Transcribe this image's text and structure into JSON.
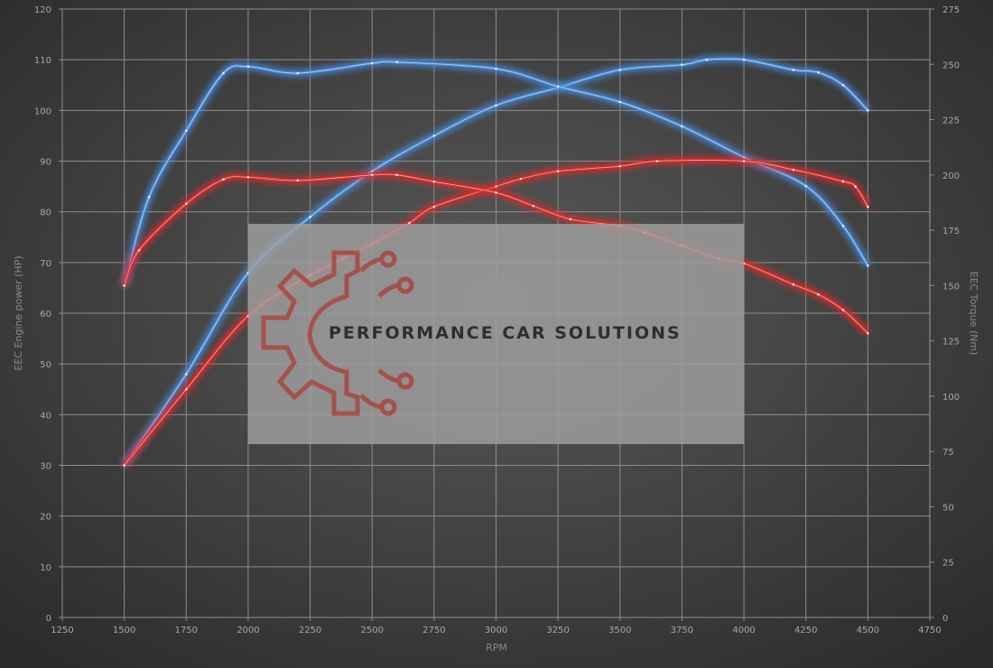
{
  "chart_data": {
    "type": "line",
    "title": "",
    "xlabel": "RPM",
    "ylabel": "EEC Engine power (HP)",
    "y2label": "EEC Torque (Nm)",
    "xlim": [
      1250,
      4750
    ],
    "xticks": [
      1250,
      1500,
      1750,
      2000,
      2250,
      2500,
      2750,
      3000,
      3250,
      3500,
      3750,
      4000,
      4250,
      4500,
      4750
    ],
    "ylim": [
      0,
      120
    ],
    "yticks": [
      0,
      10,
      20,
      30,
      40,
      50,
      60,
      70,
      80,
      90,
      100,
      110,
      120
    ],
    "y2lim": [
      0,
      275
    ],
    "y2ticks": [
      0,
      25,
      50,
      75,
      100,
      125,
      150,
      175,
      200,
      225,
      250,
      275
    ],
    "grid": true,
    "legend": "none",
    "series": [
      {
        "axis": "left",
        "color": "#4a8fe0",
        "x": [
          1500,
          1750,
          2000,
          2250,
          2500,
          2750,
          3000,
          3250,
          3500,
          3750,
          3850,
          4000,
          4200,
          4300,
          4400,
          4500
        ],
        "y": [
          30,
          48,
          68,
          79,
          88,
          95,
          101,
          104.5,
          108,
          109,
          110,
          110,
          108,
          107.5,
          105,
          100
        ]
      },
      {
        "axis": "right",
        "color": "#4a8fe0",
        "x": [
          1500,
          1600,
          1750,
          1900,
          2000,
          2200,
          2500,
          2600,
          3000,
          3250,
          3500,
          3750,
          4000,
          4250,
          4400,
          4500
        ],
        "y": [
          150,
          190,
          220,
          246,
          249,
          246,
          250.5,
          251,
          248,
          240,
          233,
          222,
          208,
          195,
          177,
          159
        ]
      },
      {
        "axis": "left",
        "color": "#e02a2a",
        "x": [
          1500,
          1750,
          2000,
          2250,
          2500,
          2650,
          2750,
          3000,
          3100,
          3250,
          3500,
          3650,
          4000,
          4200,
          4400,
          4450,
          4500
        ],
        "y": [
          30,
          45,
          59.5,
          67.5,
          73.7,
          77.8,
          81,
          85,
          86.5,
          88,
          89,
          90,
          90,
          88.3,
          86,
          85,
          81
        ]
      },
      {
        "axis": "right",
        "color": "#e02a2a",
        "x": [
          1500,
          1560,
          1750,
          1900,
          2000,
          2200,
          2500,
          2600,
          2750,
          3000,
          3150,
          3300,
          3500,
          3600,
          3750,
          3900,
          4000,
          4200,
          4300,
          4400,
          4500
        ],
        "y": [
          150,
          166,
          187,
          198,
          199,
          197.5,
          200,
          200,
          197,
          192,
          186,
          180,
          177,
          174,
          168,
          162,
          160,
          150.5,
          146,
          139,
          128.5
        ]
      }
    ],
    "watermark": {
      "text": "PERFORMANCE CAR SOLUTIONS",
      "x_range": [
        2000,
        4000
      ],
      "logo": "gear-circuit-logo",
      "logo_color": "#a84a44"
    }
  }
}
